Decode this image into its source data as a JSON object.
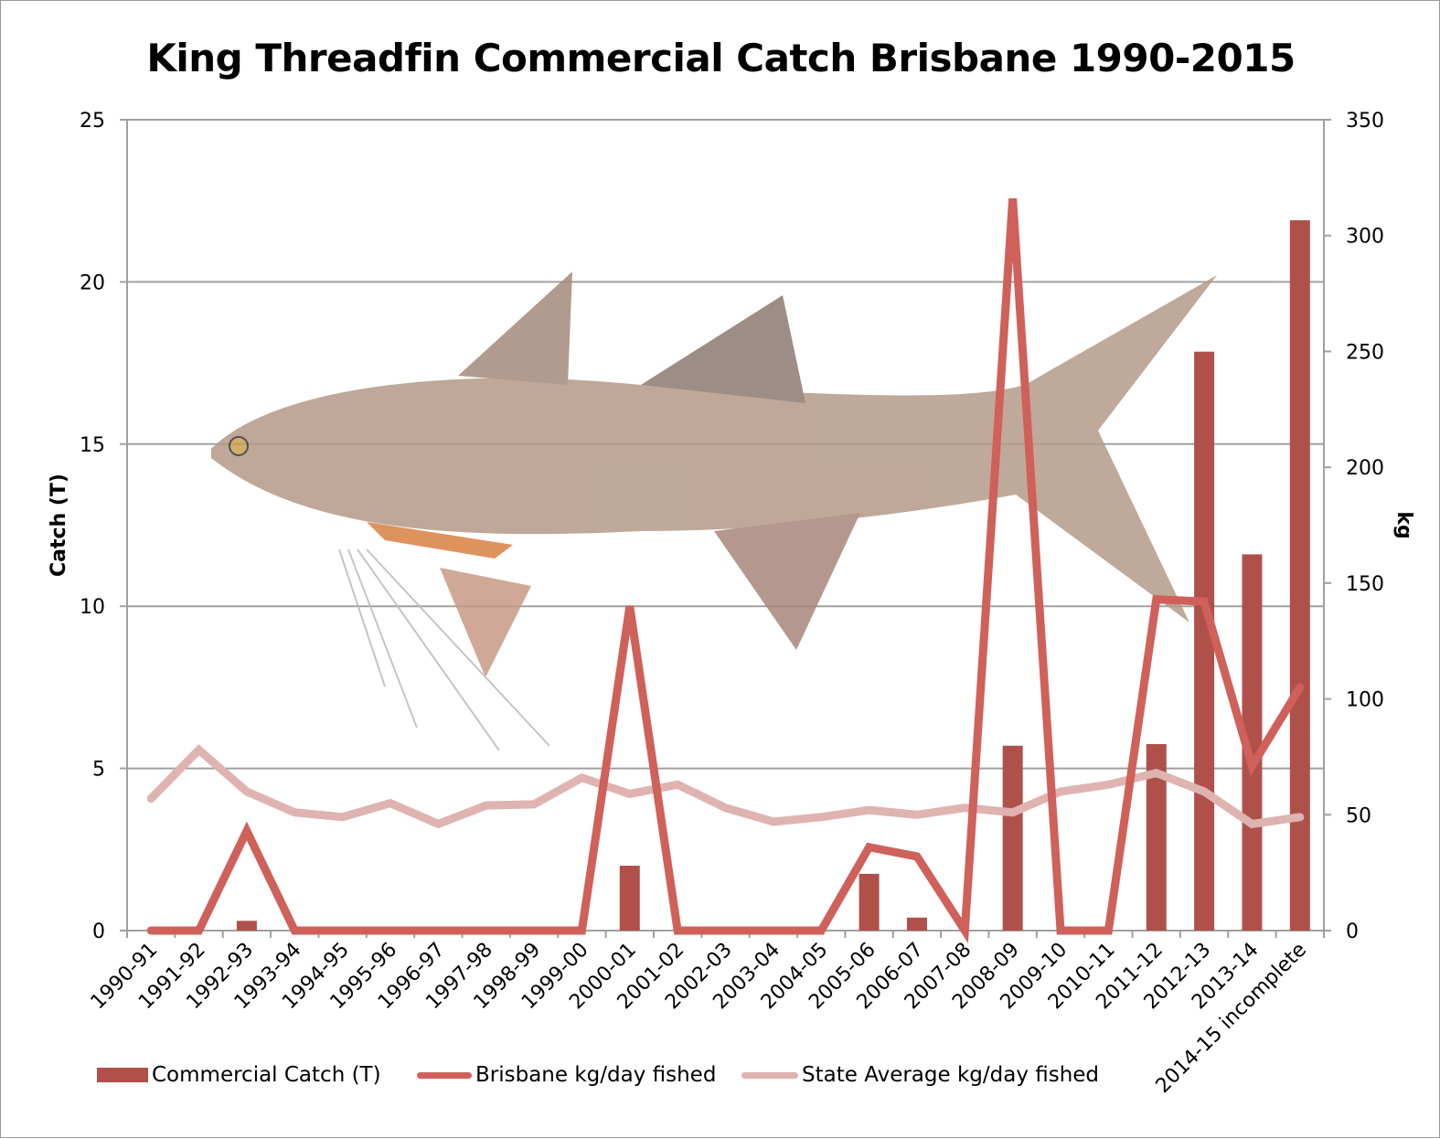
{
  "chart_data": {
    "type": "bar+line",
    "title": "King Threadfin Commercial Catch Brisbane 1990-2015",
    "ylabel": "Catch (T)",
    "y2label": "kg",
    "ylim": [
      0,
      25
    ],
    "y2lim": [
      0,
      350
    ],
    "yticks": [
      0,
      5,
      10,
      15,
      20,
      25
    ],
    "y2ticks": [
      0,
      50,
      100,
      150,
      200,
      250,
      300,
      350
    ],
    "grid": true,
    "legend_position": "bottom",
    "categories": [
      "1990-91",
      "1991-92",
      "1992-93",
      "1993-94",
      "1994-95",
      "1995-96",
      "1996-97",
      "1997-98",
      "1998-99",
      "1999-00",
      "2000-01",
      "2001-02",
      "2002-03",
      "2003-04",
      "2004-05",
      "2005-06",
      "2006-07",
      "2007-08",
      "2008-09",
      "2009-10",
      "2010-11",
      "2011-12",
      "2012-13",
      "2013-14",
      "2014-15 incomplete"
    ],
    "series": [
      {
        "name": "Commercial Catch (T)",
        "type": "bar",
        "axis": "left",
        "color": "#b0504a",
        "values": [
          0,
          0,
          0.3,
          0,
          0,
          0,
          0,
          0,
          0,
          0,
          2.0,
          0,
          0,
          0,
          0,
          1.75,
          0.4,
          0,
          5.7,
          0,
          0,
          5.75,
          17.85,
          11.6,
          21.9
        ]
      },
      {
        "name": "Brisbane kg/day fished",
        "type": "line",
        "axis": "right",
        "color": "#d0605a",
        "values": [
          0,
          0,
          43,
          0,
          0,
          0,
          0,
          0,
          0,
          0,
          140,
          0,
          0,
          0,
          0,
          36,
          32,
          0,
          316,
          0,
          0,
          143,
          142,
          71,
          105
        ]
      },
      {
        "name": "State Average kg/day fished",
        "type": "line",
        "axis": "right",
        "color": "#deb3b0",
        "values": [
          57,
          78,
          60,
          51,
          49,
          55,
          46,
          54,
          54.5,
          66,
          59,
          63,
          53,
          47,
          49,
          52,
          50,
          53,
          51,
          60,
          63,
          68,
          60,
          46,
          49
        ]
      }
    ]
  }
}
